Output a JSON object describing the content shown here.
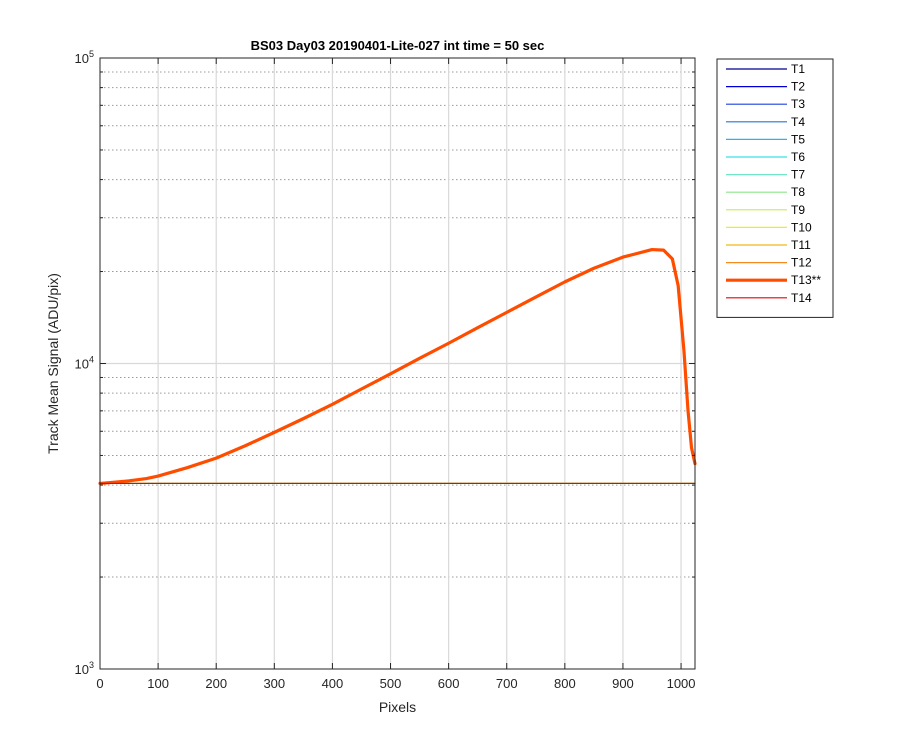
{
  "chart_data": {
    "type": "line",
    "title": "BS03 Day03 20190401-Lite-027 int time = 50 sec",
    "xlabel": "Pixels",
    "ylabel": "Track Mean Signal (ADU/pix)",
    "xlim": [
      0,
      1024
    ],
    "ylim": [
      1000,
      100000
    ],
    "yscale": "log",
    "grid": true,
    "minor_grid": true,
    "legend_placement": "outside-right",
    "x_ticks": [
      0,
      100,
      200,
      300,
      400,
      500,
      600,
      700,
      800,
      900,
      1000
    ],
    "x_tick_labels": [
      "0",
      "100",
      "200",
      "300",
      "400",
      "500",
      "600",
      "700",
      "800",
      "900",
      "1000"
    ],
    "y_ticks": [
      1000,
      10000,
      100000
    ],
    "y_tick_labels": [
      {
        "base": "10",
        "exp": "3"
      },
      {
        "base": "10",
        "exp": "4"
      },
      {
        "base": "10",
        "exp": "5"
      }
    ],
    "series": [
      {
        "name": "T1",
        "color": "#00008f",
        "width": 1.2,
        "x": [
          0,
          1024
        ],
        "y": [
          4050,
          4050
        ]
      },
      {
        "name": "T2",
        "color": "#0000d6",
        "width": 1.2,
        "x": [
          0,
          1024
        ],
        "y": [
          4050,
          4050
        ]
      },
      {
        "name": "T3",
        "color": "#1e40e0",
        "width": 1.2,
        "x": [
          0,
          1024
        ],
        "y": [
          4050,
          4050
        ]
      },
      {
        "name": "T4",
        "color": "#1f78d8",
        "width": 1.2,
        "x": [
          0,
          1024
        ],
        "y": [
          4050,
          4050
        ]
      },
      {
        "name": "T5",
        "color": "#2ab4ee",
        "width": 1.2,
        "x": [
          0,
          1024
        ],
        "y": [
          4050,
          4050
        ]
      },
      {
        "name": "T6",
        "color": "#38e0e8",
        "width": 1.2,
        "x": [
          0,
          1024
        ],
        "y": [
          4050,
          4050
        ]
      },
      {
        "name": "T7",
        "color": "#74e6c8",
        "width": 1.2,
        "x": [
          0,
          1024
        ],
        "y": [
          4050,
          4050
        ]
      },
      {
        "name": "T8",
        "color": "#8ee68a",
        "width": 1.2,
        "x": [
          0,
          1024
        ],
        "y": [
          4050,
          4050
        ]
      },
      {
        "name": "T9",
        "color": "#c6ec5a",
        "width": 1.2,
        "x": [
          0,
          1024
        ],
        "y": [
          4050,
          4050
        ]
      },
      {
        "name": "T10",
        "color": "#f2ec18",
        "width": 1.2,
        "x": [
          0,
          1024
        ],
        "y": [
          4050,
          4050
        ]
      },
      {
        "name": "T11",
        "color": "#f2b818",
        "width": 1.2,
        "x": [
          0,
          1024
        ],
        "y": [
          4050,
          4050
        ]
      },
      {
        "name": "T12",
        "color": "#f58a1e",
        "width": 1.2,
        "x": [
          0,
          1024
        ],
        "y": [
          4050,
          4050
        ]
      },
      {
        "name": "T13**",
        "color": "#ff4d00",
        "width": 3.2,
        "x": [
          0,
          20,
          50,
          80,
          100,
          150,
          200,
          250,
          300,
          350,
          400,
          450,
          500,
          550,
          600,
          650,
          700,
          750,
          800,
          850,
          900,
          950,
          970,
          985,
          995,
          1005,
          1012,
          1018,
          1024
        ],
        "y": [
          4050,
          4080,
          4130,
          4200,
          4280,
          4560,
          4900,
          5380,
          5950,
          6600,
          7350,
          8250,
          9250,
          10400,
          11650,
          13100,
          14700,
          16500,
          18500,
          20500,
          22300,
          23600,
          23500,
          22000,
          18000,
          11000,
          7000,
          5300,
          4700
        ]
      },
      {
        "name": "T14",
        "color": "#e8000d",
        "width": 1.2,
        "x": [
          0,
          1024
        ],
        "y": [
          4050,
          4050
        ]
      }
    ]
  }
}
